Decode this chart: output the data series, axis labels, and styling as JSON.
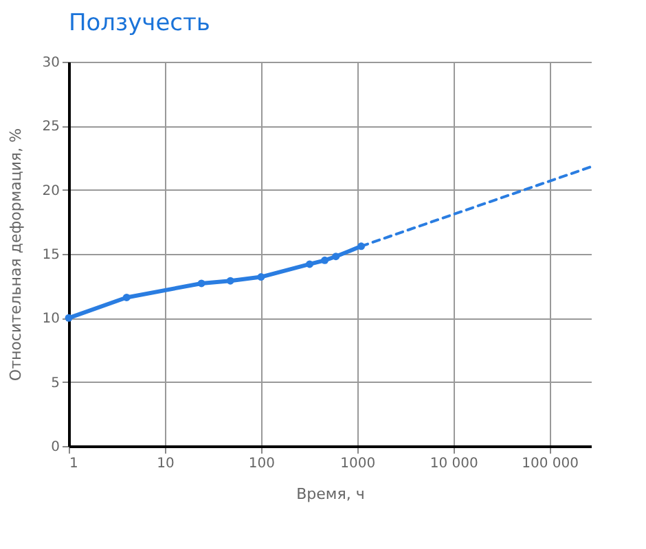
{
  "chart_data": {
    "type": "line",
    "title": "Ползучесть",
    "xlabel": "Время, ч",
    "ylabel": "Относительная деформация, %",
    "log": "x",
    "grid": true,
    "xlim": [
      1,
      270000
    ],
    "ylim": [
      0,
      30
    ],
    "xticks": [
      1,
      10,
      100,
      1000,
      {
        "value": 10000,
        "label": "10 000"
      },
      {
        "value": 100000,
        "label": "100 000"
      }
    ],
    "yticks": [
      0,
      5,
      10,
      15,
      20,
      25,
      30
    ],
    "series": [
      {
        "color": "#2a7de1",
        "marker": "circle",
        "line_style": "solid",
        "x": [
          1,
          4,
          24,
          48,
          100,
          320,
          460,
          600,
          1100
        ],
        "values": [
          10,
          11.6,
          12.7,
          12.9,
          13.2,
          14.2,
          14.5,
          14.8,
          15.6
        ]
      },
      {
        "color": "#2a7de1",
        "marker": "none",
        "line_style": "dashed",
        "x": [
          1100,
          270000
        ],
        "values": [
          15.6,
          21.8
        ]
      }
    ]
  }
}
